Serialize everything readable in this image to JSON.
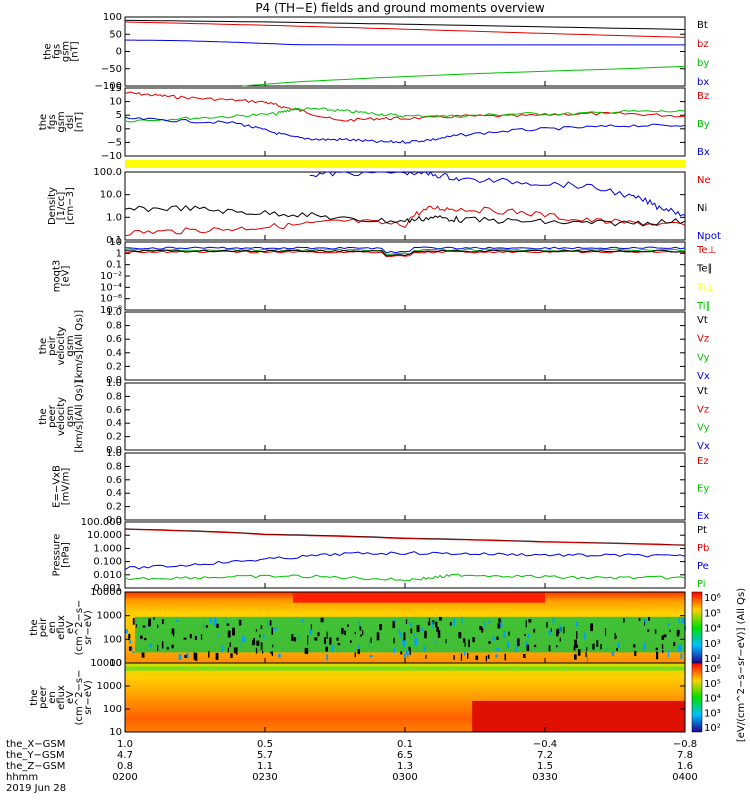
{
  "title": "P4 (TH−E) fields and ground moments overview",
  "colors": {
    "black": "#000000",
    "red": "#e00000",
    "green": "#00c000",
    "blue": "#0000e0",
    "yellow": "#ffff00"
  },
  "chart_data": [
    {
      "type": "line",
      "id": "p1",
      "ylabel": [
        "the",
        "fgs",
        "gsm",
        "[nT]"
      ],
      "yticks": [
        "100",
        "50",
        "0",
        "−50",
        "−100"
      ],
      "ylim": [
        -100,
        110
      ],
      "series": [
        {
          "name": "Bt",
          "color": "black",
          "x": [
            0,
            0.25,
            0.5,
            0.75,
            1
          ],
          "y": [
            100,
            95,
            88,
            80,
            72
          ]
        },
        {
          "name": "bz",
          "color": "red",
          "x": [
            0,
            0.25,
            0.5,
            0.75,
            1
          ],
          "y": [
            95,
            85,
            73,
            60,
            48
          ]
        },
        {
          "name": "by",
          "color": "green",
          "x": [
            0.21,
            0.3,
            0.45,
            0.6,
            0.75,
            0.9,
            1
          ],
          "y": [
            -100,
            -88,
            -75,
            -64,
            -55,
            -47,
            -40
          ]
        },
        {
          "name": "bx",
          "color": "blue",
          "x": [
            0,
            0.1,
            0.2,
            0.3,
            0.4,
            0.6,
            1
          ],
          "y": [
            40,
            38,
            33,
            26,
            25,
            25,
            25
          ]
        }
      ]
    },
    {
      "type": "line",
      "id": "p2",
      "ylabel": [
        "the",
        "fgs",
        "gsm",
        "dsl",
        "[nT]"
      ],
      "yticks": [
        "15",
        "10",
        "5",
        "0",
        "−5",
        "−10"
      ],
      "ylim": [
        -13,
        16
      ],
      "series": [
        {
          "name": "Bz",
          "color": "red",
          "x": [
            0,
            0.05,
            0.1,
            0.18,
            0.25,
            0.28,
            0.32,
            0.38,
            0.45,
            0.5,
            0.6,
            0.7,
            0.8,
            0.9,
            1
          ],
          "y": [
            14,
            13,
            12,
            11,
            10,
            8,
            6,
            2,
            3,
            3,
            4,
            4,
            5,
            5,
            4
          ]
        },
        {
          "name": "By",
          "color": "green",
          "x": [
            0,
            0.1,
            0.2,
            0.27,
            0.3,
            0.35,
            0.4,
            0.45,
            0.5,
            0.6,
            0.7,
            0.8,
            0.9,
            1
          ],
          "y": [
            2,
            3,
            4,
            5,
            7,
            7,
            6,
            5,
            4,
            4,
            5,
            5,
            6,
            6
          ]
        },
        {
          "name": "Bx",
          "color": "blue",
          "x": [
            0,
            0.1,
            0.2,
            0.25,
            0.3,
            0.35,
            0.4,
            0.45,
            0.5,
            0.55,
            0.6,
            0.7,
            0.8,
            0.9,
            1
          ],
          "y": [
            3,
            2,
            1,
            -2,
            -5,
            -6,
            -6,
            -7,
            -7,
            -6,
            -4,
            -2,
            -1,
            0,
            0
          ]
        }
      ]
    },
    {
      "type": "line",
      "id": "p3",
      "ylabel": [
        "Density",
        "[1/cc]",
        "[cm−3]"
      ],
      "yticks": [
        "100.0",
        "10.0",
        "1.0",
        "0.1"
      ],
      "ylog": true,
      "ylim": [
        0.05,
        200
      ],
      "series": [
        {
          "name": "Ne",
          "color": "red",
          "x": [
            0,
            0.1,
            0.2,
            0.3,
            0.4,
            0.5,
            0.55,
            0.6,
            0.7,
            0.8,
            0.9,
            1
          ],
          "y": [
            0.12,
            0.15,
            0.2,
            0.3,
            0.5,
            0.3,
            2.5,
            2.2,
            1.5,
            0.6,
            0.4,
            0.3
          ]
        },
        {
          "name": "Ni",
          "color": "black",
          "x": [
            0,
            0.1,
            0.2,
            0.3,
            0.4,
            0.5,
            0.55,
            0.6,
            0.7,
            0.8,
            0.9,
            1
          ],
          "y": [
            2,
            2.5,
            1.5,
            1.2,
            0.6,
            0.5,
            0.8,
            0.6,
            0.5,
            0.4,
            0.4,
            0.5
          ]
        },
        {
          "name": "Npot",
          "color": "blue",
          "x": [
            0.33,
            0.4,
            0.5,
            0.55,
            0.6,
            0.7,
            0.8,
            0.9,
            0.95,
            1
          ],
          "y": [
            150,
            180,
            200,
            150,
            80,
            60,
            40,
            10,
            3,
            1
          ]
        }
      ]
    },
    {
      "type": "line",
      "id": "p4",
      "ylabel": [
        "moqt3",
        "[eV]"
      ],
      "yticks": [
        "10",
        "1",
        "0.1",
        "10⁻²",
        "10⁻⁴",
        "10⁻⁶",
        "10⁻⁸"
      ],
      "ylog": true,
      "series": [
        {
          "name": "Te⊥",
          "color": "red"
        },
        {
          "name": "Te∥",
          "color": "black"
        },
        {
          "name": "Ti⊥",
          "color": "yellow"
        },
        {
          "name": "Ti∥",
          "color": "green"
        }
      ]
    },
    {
      "type": "line",
      "id": "p5",
      "ylabel": [
        "the",
        "peir",
        "velocity",
        "gsm",
        "[km/s](All Qs)]"
      ],
      "yticks": [
        "1.0",
        "0.8",
        "0.6",
        "0.4",
        "0.2",
        "0.0"
      ],
      "ylim": [
        0,
        1
      ],
      "series": [
        {
          "name": "Vt",
          "color": "black"
        },
        {
          "name": "Vz",
          "color": "red"
        },
        {
          "name": "Vy",
          "color": "green"
        },
        {
          "name": "Vx",
          "color": "blue"
        }
      ]
    },
    {
      "type": "line",
      "id": "p6",
      "ylabel": [
        "the",
        "peer",
        "velocity",
        "gsm",
        "[km/s](All Qs)]"
      ],
      "yticks": [
        "1.0",
        "0.8",
        "0.6",
        "0.4",
        "0.2",
        "0.0"
      ],
      "ylim": [
        0,
        1
      ],
      "series": [
        {
          "name": "Vt",
          "color": "black"
        },
        {
          "name": "Vz",
          "color": "red"
        },
        {
          "name": "Vy",
          "color": "green"
        },
        {
          "name": "Vx",
          "color": "blue"
        }
      ]
    },
    {
      "type": "line",
      "id": "p7",
      "ylabel": [
        "E=−VxB",
        "[mV/m]"
      ],
      "yticks": [
        "1.0",
        "0.8",
        "0.6",
        "0.4",
        "0.2",
        "0.0"
      ],
      "ylim": [
        0,
        1
      ],
      "series": [
        {
          "name": "Ez",
          "color": "red"
        },
        {
          "name": "Ey",
          "color": "green"
        },
        {
          "name": "Ex",
          "color": "blue"
        }
      ]
    },
    {
      "type": "line",
      "id": "p8",
      "ylabel": [
        "Pressure",
        "[nPa]"
      ],
      "yticks": [
        "100.000",
        "10.000",
        "1.000",
        "0.100",
        "0.010",
        "0.001"
      ],
      "ylog": true,
      "ylim": [
        0.001,
        100
      ],
      "series": [
        {
          "name": "Pt",
          "color": "black",
          "x": [
            0,
            0.25,
            0.5,
            0.75,
            1
          ],
          "y": [
            30,
            12,
            6,
            3.2,
            1.8
          ]
        },
        {
          "name": "Pb",
          "color": "red",
          "x": [
            0,
            0.25,
            0.5,
            0.75,
            1
          ],
          "y": [
            28,
            11,
            5.5,
            3,
            1.7
          ]
        },
        {
          "name": "Pe",
          "color": "blue",
          "x": [
            0,
            0.1,
            0.2,
            0.3,
            0.4,
            0.5,
            0.6,
            0.7,
            0.8,
            0.9,
            1
          ],
          "y": [
            0.03,
            0.05,
            0.1,
            0.2,
            0.4,
            0.45,
            0.4,
            0.35,
            0.3,
            0.3,
            0.25
          ]
        },
        {
          "name": "Pi",
          "color": "green",
          "x": [
            0,
            0.1,
            0.2,
            0.3,
            0.4,
            0.5,
            0.55,
            0.6,
            0.7,
            0.8,
            0.9,
            1
          ],
          "y": [
            0.005,
            0.006,
            0.007,
            0.008,
            0.006,
            0.004,
            0.006,
            0.01,
            0.008,
            0.006,
            0.006,
            0.006
          ]
        }
      ]
    },
    {
      "type": "heatmap",
      "id": "p9",
      "ylabel": [
        "the",
        "peir",
        "en",
        "eflux",
        "eV",
        "(cm^2−s−",
        "sr−eV)"
      ],
      "yticks": [
        "10000",
        "1000",
        "100",
        "10"
      ],
      "colorbar_ticks": [
        "10⁶",
        "10⁵",
        "10⁴",
        "10³",
        "10²"
      ]
    },
    {
      "type": "heatmap",
      "id": "p10",
      "ylabel": [
        "the",
        "peer",
        "en",
        "eflux",
        "eV",
        "(cm^2−s−",
        "sr−eV)"
      ],
      "yticks": [
        "10000",
        "1000",
        "100",
        "10"
      ],
      "colorbar_ticks": [
        "10⁶",
        "10⁵",
        "10⁴",
        "10³",
        "10²"
      ]
    }
  ],
  "colorbar_label": "[eV/(cm^2−s−sr−eV)] (All Qs)",
  "xaxis": {
    "row_labels": [
      "the_X−GSM",
      "the_Y−GSM",
      "the_Z−GSM",
      "hhmm",
      "2019 Jun 28"
    ],
    "columns": [
      [
        "1.0",
        "4.7",
        "0.8",
        "0200"
      ],
      [
        "0.5",
        "5.7",
        "1.1",
        "0230"
      ],
      [
        "0.1",
        "6.5",
        "1.3",
        "0300"
      ],
      [
        "−0.4",
        "7.2",
        "1.5",
        "0330"
      ],
      [
        "−0.8",
        "7.8",
        "1.6",
        "0400"
      ]
    ]
  }
}
